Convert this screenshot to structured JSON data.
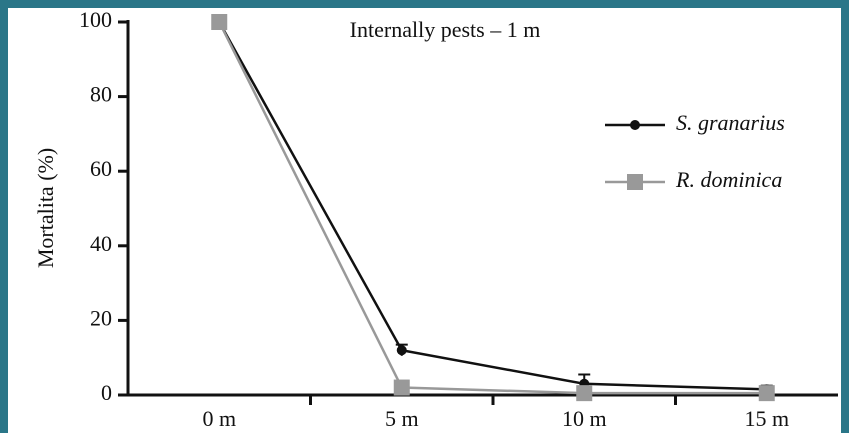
{
  "chart_data": {
    "type": "line",
    "title": "Internally pests – 1 m",
    "ylabel": "Mortalita (%)",
    "categories": [
      "0 m",
      "5 m",
      "10 m",
      "15 m"
    ],
    "series": [
      {
        "name": "S. granarius",
        "color": "#111111",
        "marker": "circle",
        "values": [
          100,
          12,
          3,
          1.5
        ],
        "errors": [
          0,
          1.5,
          2.5,
          1
        ]
      },
      {
        "name": "R. dominica",
        "color": "#999999",
        "marker": "square",
        "values": [
          100,
          2,
          0.5,
          0.5
        ],
        "errors": [
          0,
          0,
          0,
          1
        ]
      }
    ],
    "ylim": [
      0,
      100
    ],
    "yticks": [
      0,
      20,
      40,
      60,
      80,
      100
    ],
    "legend": "upper right"
  }
}
